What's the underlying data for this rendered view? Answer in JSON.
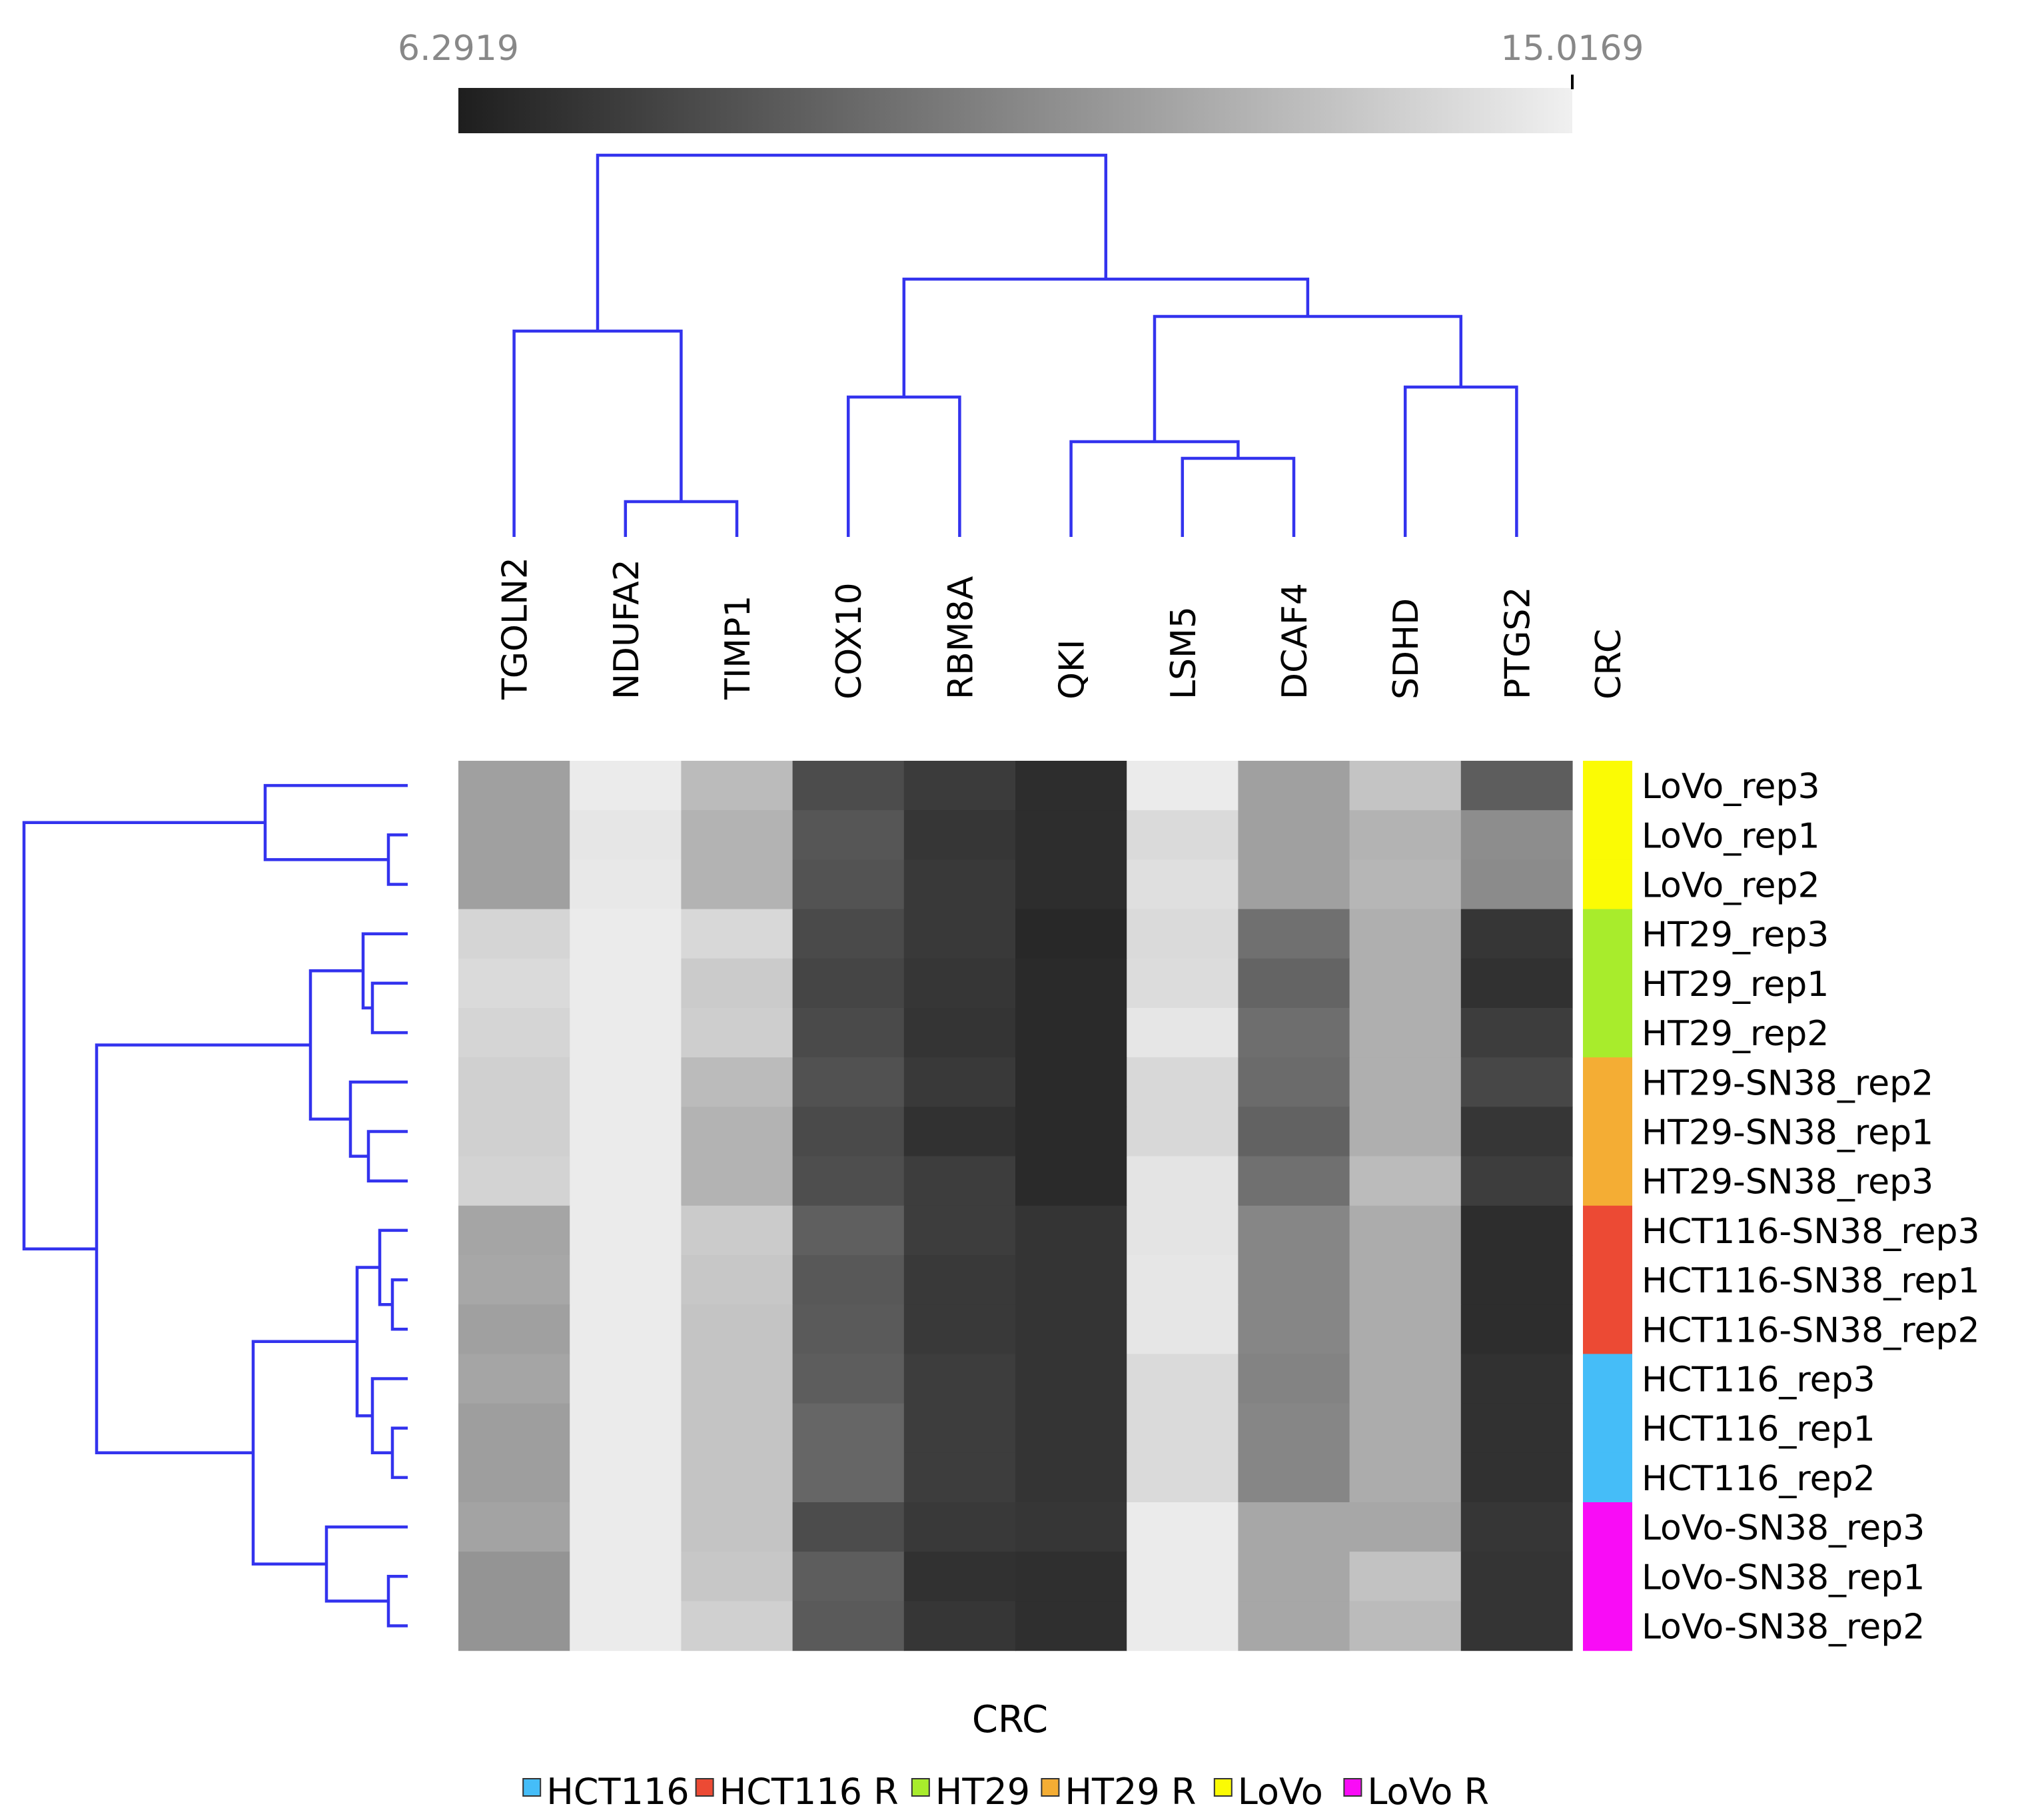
{
  "chart_data": {
    "type": "heatmap",
    "title": "",
    "xlabel": "CRC",
    "ylabel": "",
    "colorscale": {
      "min_label": "6.2919",
      "max_label": "15.0169",
      "min": 6.2919,
      "max": 15.0169,
      "low_color": "#1e1e1e",
      "high_color": "#f0f0f0"
    },
    "columns": [
      "TGOLN2",
      "NDUFA2",
      "TIMP1",
      "COX10",
      "RBM8A",
      "QKI",
      "LSM5",
      "DCAF4",
      "SDHD",
      "PTGS2"
    ],
    "annotation_column_label": "CRC",
    "rows": [
      "LoVo_rep3",
      "LoVo_rep1",
      "LoVo_rep2",
      "HT29_rep3",
      "HT29_rep1",
      "HT29_rep2",
      "HT29-SN38_rep2",
      "HT29-SN38_rep1",
      "HT29-SN38_rep3",
      "HCT116-SN38_rep3",
      "HCT116-SN38_rep1",
      "HCT116-SN38_rep2",
      "HCT116_rep3",
      "HCT116_rep1",
      "HCT116_rep2",
      "LoVo-SN38_rep3",
      "LoVo-SN38_rep1",
      "LoVo-SN38_rep2"
    ],
    "row_groups": [
      "LoVo",
      "LoVo",
      "LoVo",
      "HT29",
      "HT29",
      "HT29",
      "HT29 R",
      "HT29 R",
      "HT29 R",
      "HCT116 R",
      "HCT116 R",
      "HCT116 R",
      "HCT116",
      "HCT116",
      "HCT116",
      "LoVo R",
      "LoVo R",
      "LoVo R"
    ],
    "values": [
      [
        11.7,
        14.8,
        12.8,
        8.2,
        7.5,
        6.9,
        14.8,
        11.7,
        13.2,
        8.9
      ],
      [
        11.7,
        14.6,
        12.5,
        8.6,
        7.3,
        6.9,
        14.1,
        11.7,
        12.5,
        10.9
      ],
      [
        11.7,
        14.7,
        12.5,
        8.5,
        7.4,
        6.9,
        14.3,
        11.7,
        12.6,
        10.8
      ],
      [
        13.9,
        14.8,
        14.0,
        8.1,
        7.4,
        6.7,
        14.1,
        9.7,
        12.3,
        7.3
      ],
      [
        14.1,
        14.8,
        13.5,
        7.9,
        7.3,
        6.8,
        14.2,
        9.2,
        12.3,
        7.1
      ],
      [
        13.9,
        14.8,
        13.6,
        8.1,
        7.2,
        6.8,
        14.6,
        9.6,
        12.3,
        7.6
      ],
      [
        13.7,
        14.8,
        12.8,
        8.4,
        7.4,
        6.8,
        14.0,
        9.5,
        12.3,
        8.0
      ],
      [
        13.7,
        14.8,
        12.5,
        8.1,
        7.1,
        6.8,
        14.0,
        9.1,
        12.3,
        7.3
      ],
      [
        13.8,
        14.8,
        12.5,
        8.3,
        7.6,
        6.8,
        14.5,
        9.7,
        12.8,
        7.6
      ],
      [
        11.9,
        14.8,
        13.5,
        9.0,
        7.6,
        7.2,
        14.5,
        10.6,
        12.2,
        6.9
      ],
      [
        12.0,
        14.8,
        13.3,
        8.7,
        7.4,
        7.2,
        14.6,
        10.6,
        12.2,
        6.9
      ],
      [
        11.7,
        14.8,
        13.2,
        8.8,
        7.4,
        7.2,
        14.6,
        10.6,
        12.2,
        6.9
      ],
      [
        11.9,
        14.8,
        13.2,
        8.9,
        7.6,
        7.2,
        14.1,
        10.5,
        12.2,
        7.1
      ],
      [
        11.6,
        14.8,
        13.2,
        9.3,
        7.6,
        7.2,
        14.1,
        10.6,
        12.2,
        7.1
      ],
      [
        11.6,
        14.8,
        13.2,
        9.3,
        7.6,
        7.2,
        14.1,
        10.6,
        12.2,
        7.1
      ],
      [
        11.8,
        14.8,
        13.2,
        8.2,
        7.4,
        7.3,
        14.8,
        12.0,
        12.0,
        7.3
      ],
      [
        11.2,
        14.8,
        13.3,
        8.9,
        7.1,
        7.0,
        14.8,
        12.0,
        13.1,
        7.2
      ],
      [
        11.2,
        14.8,
        13.7,
        8.8,
        7.3,
        7.0,
        14.8,
        12.0,
        12.8,
        7.2
      ]
    ],
    "legend": [
      {
        "label": "HCT116",
        "color": "#45bdf8"
      },
      {
        "label": "HCT116 R",
        "color": "#ec4a34"
      },
      {
        "label": "HT29",
        "color": "#a8ec2c"
      },
      {
        "label": "HT29 R",
        "color": "#f4ad34"
      },
      {
        "label": "LoVo",
        "color": "#fbfb04"
      },
      {
        "label": "LoVo R",
        "color": "#f90cf6"
      }
    ],
    "dendrogram_color": "#3333ee",
    "legend_position": "bottom",
    "grid": false
  }
}
